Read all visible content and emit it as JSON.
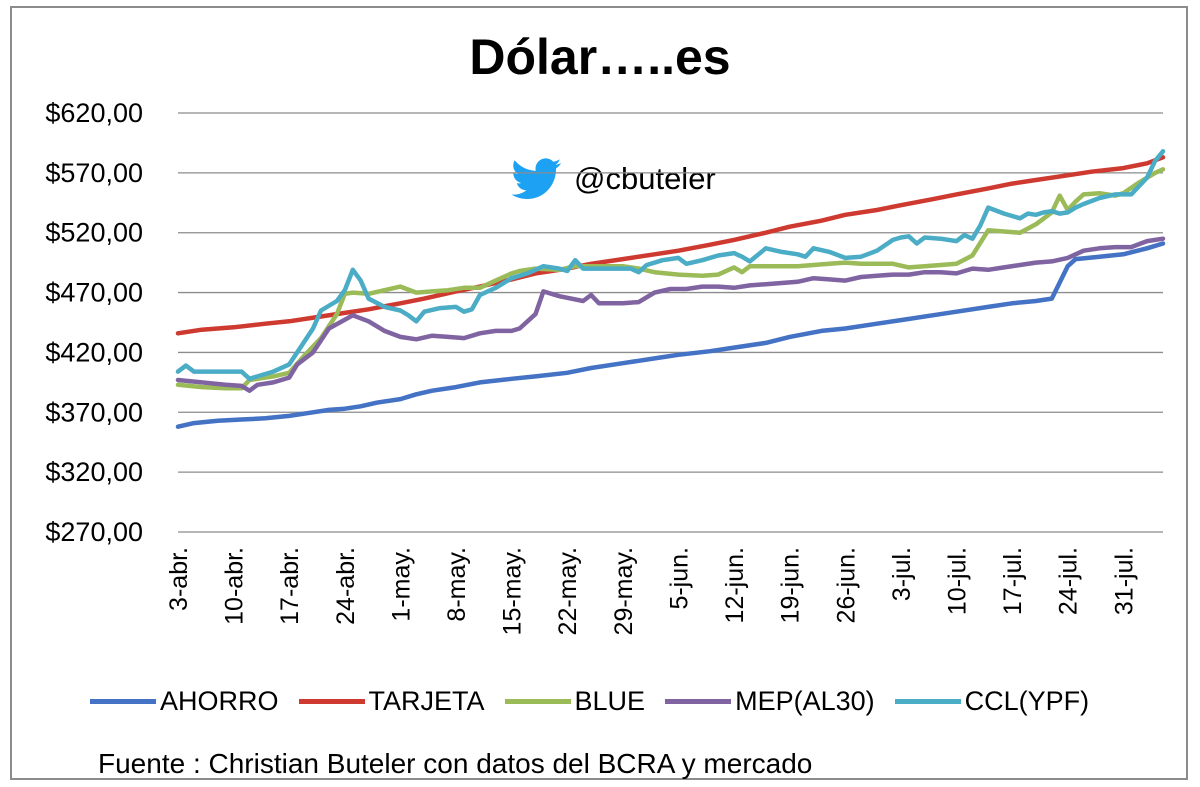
{
  "chart_data": {
    "type": "line",
    "title": "Dólar…..es",
    "watermark": "@cbuteler",
    "source": "Fuente : Christian Buteler con datos del BCRA y mercado",
    "ylim": [
      270,
      620
    ],
    "yticks": [
      270,
      320,
      370,
      420,
      470,
      520,
      570,
      620
    ],
    "ytick_labels": [
      "$270,00",
      "$320,00",
      "$370,00",
      "$420,00",
      "$470,00",
      "$520,00",
      "$570,00",
      "$620,00"
    ],
    "x_tick_labels": [
      "3-abr.",
      "10-abr.",
      "17-abr.",
      "24-abr.",
      "1-may.",
      "8-may.",
      "15-may.",
      "22-may.",
      "29-may.",
      "5-jun.",
      "12-jun.",
      "19-jun.",
      "26-jun.",
      "3-jul.",
      "10-jul.",
      "17-jul.",
      "24-jul.",
      "31-jul."
    ],
    "x_tick_days": [
      0,
      7,
      14,
      21,
      28,
      35,
      42,
      49,
      56,
      63,
      70,
      77,
      84,
      91,
      98,
      105,
      112,
      119
    ],
    "x_end_day": 124,
    "grid": true,
    "legend_position": "bottom",
    "series": [
      {
        "name": "AHORRO",
        "color": "#4472C4",
        "points": [
          [
            0,
            358
          ],
          [
            2,
            361
          ],
          [
            5,
            363
          ],
          [
            8,
            364
          ],
          [
            11,
            365
          ],
          [
            14,
            367
          ],
          [
            17,
            370
          ],
          [
            19,
            372
          ],
          [
            21,
            373
          ],
          [
            23,
            375
          ],
          [
            25,
            378
          ],
          [
            28,
            381
          ],
          [
            30,
            385
          ],
          [
            32,
            388
          ],
          [
            35,
            391
          ],
          [
            38,
            395
          ],
          [
            42,
            398
          ],
          [
            45,
            400
          ],
          [
            49,
            403
          ],
          [
            52,
            407
          ],
          [
            56,
            411
          ],
          [
            60,
            415
          ],
          [
            63,
            418
          ],
          [
            67,
            421
          ],
          [
            70,
            424
          ],
          [
            74,
            428
          ],
          [
            77,
            433
          ],
          [
            81,
            438
          ],
          [
            84,
            440
          ],
          [
            88,
            444
          ],
          [
            91,
            447
          ],
          [
            95,
            451
          ],
          [
            98,
            454
          ],
          [
            102,
            458
          ],
          [
            105,
            461
          ],
          [
            108,
            463
          ],
          [
            110,
            465
          ],
          [
            112,
            492
          ],
          [
            113,
            498
          ],
          [
            116,
            500
          ],
          [
            119,
            502
          ],
          [
            122,
            507
          ],
          [
            124,
            511
          ]
        ]
      },
      {
        "name": "TARJETA",
        "color": "#CF3A30",
        "points": [
          [
            0,
            436
          ],
          [
            3,
            439
          ],
          [
            7,
            441
          ],
          [
            11,
            444
          ],
          [
            14,
            446
          ],
          [
            18,
            450
          ],
          [
            21,
            453
          ],
          [
            24,
            456
          ],
          [
            28,
            461
          ],
          [
            31,
            465
          ],
          [
            35,
            471
          ],
          [
            38,
            475
          ],
          [
            42,
            481
          ],
          [
            45,
            486
          ],
          [
            49,
            490
          ],
          [
            52,
            494
          ],
          [
            56,
            498
          ],
          [
            60,
            502
          ],
          [
            63,
            505
          ],
          [
            67,
            510
          ],
          [
            70,
            514
          ],
          [
            74,
            520
          ],
          [
            77,
            525
          ],
          [
            81,
            530
          ],
          [
            84,
            535
          ],
          [
            88,
            539
          ],
          [
            91,
            543
          ],
          [
            95,
            548
          ],
          [
            98,
            552
          ],
          [
            102,
            557
          ],
          [
            105,
            561
          ],
          [
            108,
            564
          ],
          [
            112,
            568
          ],
          [
            115,
            571
          ],
          [
            119,
            574
          ],
          [
            122,
            578
          ],
          [
            124,
            583
          ]
        ]
      },
      {
        "name": "BLUE",
        "color": "#9BBB59",
        "points": [
          [
            0,
            393
          ],
          [
            3,
            391
          ],
          [
            6,
            390
          ],
          [
            8,
            390
          ],
          [
            9,
            397
          ],
          [
            12,
            400
          ],
          [
            14,
            403
          ],
          [
            16,
            418
          ],
          [
            18,
            432
          ],
          [
            20,
            452
          ],
          [
            21,
            469
          ],
          [
            22,
            470
          ],
          [
            24,
            469
          ],
          [
            26,
            472
          ],
          [
            28,
            475
          ],
          [
            30,
            470
          ],
          [
            32,
            471
          ],
          [
            34,
            472
          ],
          [
            36,
            474
          ],
          [
            38,
            474
          ],
          [
            40,
            480
          ],
          [
            42,
            486
          ],
          [
            43,
            488
          ],
          [
            45,
            490
          ],
          [
            48,
            489
          ],
          [
            50,
            492
          ],
          [
            52,
            492
          ],
          [
            54,
            492
          ],
          [
            56,
            492
          ],
          [
            58,
            490
          ],
          [
            60,
            487
          ],
          [
            63,
            485
          ],
          [
            66,
            484
          ],
          [
            68,
            485
          ],
          [
            70,
            491
          ],
          [
            71,
            487
          ],
          [
            72,
            492
          ],
          [
            74,
            492
          ],
          [
            76,
            492
          ],
          [
            78,
            492
          ],
          [
            80,
            493
          ],
          [
            82,
            494
          ],
          [
            84,
            495
          ],
          [
            86,
            494
          ],
          [
            88,
            494
          ],
          [
            90,
            494
          ],
          [
            92,
            491
          ],
          [
            94,
            492
          ],
          [
            96,
            493
          ],
          [
            98,
            494
          ],
          [
            100,
            501
          ],
          [
            102,
            522
          ],
          [
            104,
            521
          ],
          [
            106,
            520
          ],
          [
            108,
            527
          ],
          [
            110,
            537
          ],
          [
            111,
            551
          ],
          [
            112,
            539
          ],
          [
            113,
            546
          ],
          [
            114,
            552
          ],
          [
            116,
            553
          ],
          [
            118,
            551
          ],
          [
            119,
            553
          ],
          [
            121,
            562
          ],
          [
            123,
            570
          ],
          [
            124,
            573
          ]
        ]
      },
      {
        "name": "MEP(AL30)",
        "color": "#8064A2",
        "points": [
          [
            0,
            397
          ],
          [
            3,
            395
          ],
          [
            6,
            393
          ],
          [
            8,
            392
          ],
          [
            9,
            388
          ],
          [
            10,
            393
          ],
          [
            12,
            395
          ],
          [
            14,
            399
          ],
          [
            15,
            410
          ],
          [
            17,
            420
          ],
          [
            19,
            440
          ],
          [
            22,
            451
          ],
          [
            24,
            446
          ],
          [
            26,
            438
          ],
          [
            28,
            433
          ],
          [
            30,
            431
          ],
          [
            32,
            434
          ],
          [
            34,
            433
          ],
          [
            36,
            432
          ],
          [
            38,
            436
          ],
          [
            40,
            438
          ],
          [
            42,
            438
          ],
          [
            43,
            440
          ],
          [
            45,
            452
          ],
          [
            46,
            471
          ],
          [
            48,
            467
          ],
          [
            51,
            463
          ],
          [
            52,
            468
          ],
          [
            53,
            461
          ],
          [
            56,
            461
          ],
          [
            58,
            462
          ],
          [
            60,
            470
          ],
          [
            62,
            473
          ],
          [
            64,
            473
          ],
          [
            66,
            475
          ],
          [
            68,
            475
          ],
          [
            70,
            474
          ],
          [
            72,
            476
          ],
          [
            74,
            477
          ],
          [
            76,
            478
          ],
          [
            78,
            479
          ],
          [
            80,
            482
          ],
          [
            82,
            481
          ],
          [
            84,
            480
          ],
          [
            86,
            483
          ],
          [
            88,
            484
          ],
          [
            90,
            485
          ],
          [
            92,
            485
          ],
          [
            94,
            487
          ],
          [
            96,
            487
          ],
          [
            98,
            486
          ],
          [
            100,
            490
          ],
          [
            102,
            489
          ],
          [
            104,
            491
          ],
          [
            106,
            493
          ],
          [
            108,
            495
          ],
          [
            110,
            496
          ],
          [
            112,
            499
          ],
          [
            114,
            505
          ],
          [
            116,
            507
          ],
          [
            118,
            508
          ],
          [
            120,
            508
          ],
          [
            122,
            513
          ],
          [
            124,
            515
          ]
        ]
      },
      {
        "name": "CCL(YPF)",
        "color": "#4BACC6",
        "points": [
          [
            0,
            404
          ],
          [
            1,
            409
          ],
          [
            2,
            404
          ],
          [
            4,
            404
          ],
          [
            6,
            404
          ],
          [
            8,
            404
          ],
          [
            9,
            398
          ],
          [
            10,
            400
          ],
          [
            12,
            404
          ],
          [
            14,
            410
          ],
          [
            15,
            420
          ],
          [
            17,
            440
          ],
          [
            18,
            455
          ],
          [
            20,
            463
          ],
          [
            21,
            472
          ],
          [
            22,
            489
          ],
          [
            23,
            480
          ],
          [
            24,
            465
          ],
          [
            26,
            458
          ],
          [
            28,
            455
          ],
          [
            29,
            451
          ],
          [
            30,
            446
          ],
          [
            31,
            454
          ],
          [
            33,
            457
          ],
          [
            35,
            458
          ],
          [
            36,
            454
          ],
          [
            37,
            456
          ],
          [
            38,
            468
          ],
          [
            40,
            474
          ],
          [
            42,
            482
          ],
          [
            44,
            486
          ],
          [
            46,
            492
          ],
          [
            48,
            490
          ],
          [
            49,
            488
          ],
          [
            50,
            497
          ],
          [
            51,
            490
          ],
          [
            53,
            490
          ],
          [
            55,
            490
          ],
          [
            57,
            490
          ],
          [
            58,
            487
          ],
          [
            59,
            493
          ],
          [
            61,
            497
          ],
          [
            63,
            499
          ],
          [
            64,
            494
          ],
          [
            66,
            497
          ],
          [
            68,
            501
          ],
          [
            70,
            503
          ],
          [
            71,
            500
          ],
          [
            72,
            496
          ],
          [
            74,
            507
          ],
          [
            76,
            504
          ],
          [
            78,
            502
          ],
          [
            79,
            500
          ],
          [
            80,
            507
          ],
          [
            82,
            504
          ],
          [
            84,
            499
          ],
          [
            86,
            500
          ],
          [
            88,
            505
          ],
          [
            90,
            514
          ],
          [
            91,
            516
          ],
          [
            92,
            517
          ],
          [
            93,
            511
          ],
          [
            94,
            516
          ],
          [
            96,
            515
          ],
          [
            98,
            513
          ],
          [
            99,
            518
          ],
          [
            100,
            515
          ],
          [
            101,
            526
          ],
          [
            102,
            541
          ],
          [
            104,
            536
          ],
          [
            105,
            534
          ],
          [
            106,
            532
          ],
          [
            107,
            536
          ],
          [
            108,
            535
          ],
          [
            109,
            537
          ],
          [
            110,
            538
          ],
          [
            111,
            536
          ],
          [
            112,
            537
          ],
          [
            113,
            541
          ],
          [
            114,
            544
          ],
          [
            116,
            549
          ],
          [
            118,
            552
          ],
          [
            120,
            552
          ],
          [
            122,
            566
          ],
          [
            123,
            580
          ],
          [
            124,
            588
          ]
        ]
      }
    ]
  }
}
